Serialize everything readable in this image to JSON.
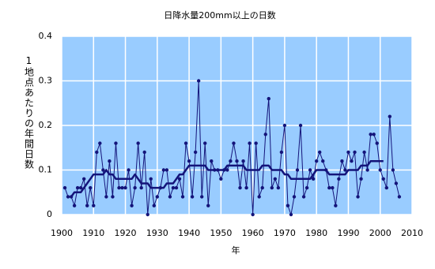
{
  "chart_data": {
    "type": "line",
    "title": "日降水量200mm以上の日数",
    "xlabel": "年",
    "ylabel": "1地点あたりの年間日数",
    "x": [
      1901,
      1902,
      1903,
      1904,
      1905,
      1906,
      1907,
      1908,
      1909,
      1910,
      1911,
      1912,
      1913,
      1914,
      1915,
      1916,
      1917,
      1918,
      1919,
      1920,
      1921,
      1922,
      1923,
      1924,
      1925,
      1926,
      1927,
      1928,
      1929,
      1930,
      1931,
      1932,
      1933,
      1934,
      1935,
      1936,
      1937,
      1938,
      1939,
      1940,
      1941,
      1942,
      1943,
      1944,
      1945,
      1946,
      1947,
      1948,
      1949,
      1950,
      1951,
      1952,
      1953,
      1954,
      1955,
      1956,
      1957,
      1958,
      1959,
      1960,
      1961,
      1962,
      1963,
      1964,
      1965,
      1966,
      1967,
      1968,
      1969,
      1970,
      1971,
      1972,
      1973,
      1974,
      1975,
      1976,
      1977,
      1978,
      1979,
      1980,
      1981,
      1982,
      1983,
      1984,
      1985,
      1986,
      1987,
      1988,
      1989,
      1990,
      1991,
      1992,
      1993,
      1994,
      1995,
      1996,
      1997,
      1998,
      1999,
      2000,
      2001,
      2002,
      2003,
      2004,
      2005,
      2006
    ],
    "series": [
      {
        "color": "#14147a",
        "markers": true,
        "line_width": 1,
        "values": [
          0.06,
          0.04,
          0.04,
          0.02,
          0.06,
          0.06,
          0.08,
          0.02,
          0.06,
          0.02,
          0.14,
          0.16,
          0.1,
          0.04,
          0.12,
          0.04,
          0.16,
          0.06,
          0.06,
          0.06,
          0.1,
          0.02,
          0.06,
          0.16,
          0.06,
          0.14,
          0.0,
          0.08,
          0.02,
          0.04,
          0.06,
          0.1,
          0.1,
          0.04,
          0.06,
          0.06,
          0.08,
          0.04,
          0.16,
          0.12,
          0.04,
          0.14,
          0.3,
          0.04,
          0.16,
          0.02,
          0.12,
          0.1,
          0.1,
          0.08,
          0.1,
          0.1,
          0.12,
          0.16,
          0.12,
          0.06,
          0.12,
          0.06,
          0.16,
          0.0,
          0.16,
          0.04,
          0.06,
          0.18,
          0.26,
          0.06,
          0.08,
          0.06,
          0.14,
          0.2,
          0.02,
          0.0,
          0.04,
          0.1,
          0.2,
          0.04,
          0.06,
          0.1,
          0.08,
          0.12,
          0.14,
          0.12,
          0.1,
          0.06,
          0.06,
          0.02,
          0.08,
          0.12,
          0.1,
          0.14,
          0.12,
          0.14,
          0.04,
          0.08,
          0.14,
          0.1,
          0.18,
          0.18,
          0.16,
          0.1,
          0.08,
          0.06,
          0.22,
          0.1,
          0.07,
          0.04
        ]
      },
      {
        "color": "#14147a",
        "markers": false,
        "line_width": 2.5,
        "values": [
          null,
          null,
          0.04,
          0.05,
          0.05,
          0.05,
          0.06,
          0.07,
          0.08,
          0.09,
          0.09,
          0.09,
          0.09,
          0.1,
          0.09,
          0.09,
          0.08,
          0.08,
          0.08,
          0.08,
          0.08,
          0.08,
          0.09,
          0.08,
          0.07,
          0.07,
          0.07,
          0.06,
          0.06,
          0.06,
          0.06,
          0.06,
          0.07,
          0.07,
          0.07,
          0.08,
          0.09,
          0.09,
          0.1,
          0.11,
          0.11,
          0.11,
          0.11,
          0.11,
          0.11,
          0.1,
          0.1,
          0.1,
          0.1,
          0.1,
          0.1,
          0.11,
          0.11,
          0.11,
          0.11,
          0.11,
          0.11,
          0.1,
          0.1,
          0.1,
          0.1,
          0.1,
          0.11,
          0.11,
          0.11,
          0.1,
          0.1,
          0.1,
          0.1,
          0.09,
          0.09,
          0.08,
          0.08,
          0.08,
          0.08,
          0.08,
          0.08,
          0.08,
          0.09,
          0.1,
          0.1,
          0.1,
          0.1,
          0.09,
          0.09,
          0.09,
          0.09,
          0.09,
          0.09,
          0.1,
          0.1,
          0.1,
          0.1,
          0.11,
          0.11,
          0.11,
          0.12,
          0.12,
          0.12,
          0.12,
          0.12,
          null,
          null,
          null,
          null,
          null
        ]
      }
    ],
    "xlim": [
      1900,
      2010
    ],
    "xticks": [
      1900,
      1910,
      1920,
      1930,
      1940,
      1950,
      1960,
      1970,
      1980,
      1990,
      2000,
      2010
    ],
    "ylim": [
      0,
      0.4
    ],
    "yticks": [
      0,
      0.1,
      0.2,
      0.3,
      0.4
    ],
    "grid": true,
    "plot_background": "#99ccff"
  }
}
